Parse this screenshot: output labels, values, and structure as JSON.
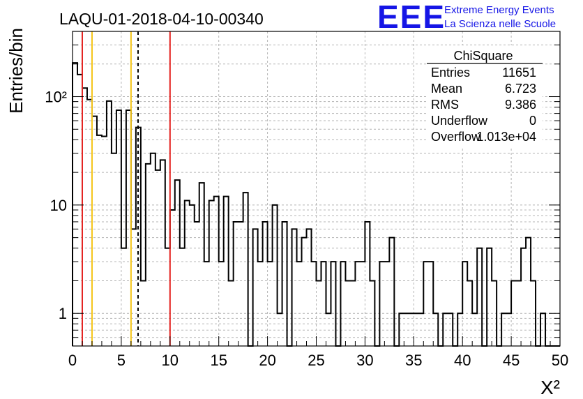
{
  "chart_data": {
    "type": "histogram",
    "title": "LAQU-01-2018-04-10-00340",
    "xlabel": "X²",
    "ylabel": "Entries/bin",
    "xlim": [
      0,
      50
    ],
    "ylim": [
      0.5,
      400
    ],
    "yscale": "log",
    "grid": true,
    "bin_width": 0.5,
    "x_ticks": [
      0,
      5,
      10,
      15,
      20,
      25,
      30,
      35,
      40,
      45,
      50
    ],
    "x_tick_labels": [
      "0",
      "5",
      "10",
      "15",
      "20",
      "25",
      "30",
      "35",
      "40",
      "45",
      "50"
    ],
    "y_ticks": [
      1,
      10,
      100
    ],
    "y_tick_labels": [
      "1",
      "10",
      "10²"
    ],
    "bin_contents": [
      205,
      160,
      120,
      94,
      66,
      44,
      43,
      91,
      30,
      75,
      4,
      75,
      6,
      52,
      2,
      24,
      30,
      21,
      26,
      4,
      9,
      17,
      4,
      11,
      10,
      7,
      16,
      3,
      11,
      12,
      3,
      12,
      2,
      7,
      7,
      13,
      0,
      6,
      3,
      7,
      3,
      10,
      1,
      7,
      0,
      6,
      3,
      5,
      6,
      3,
      2,
      3,
      1,
      3,
      0,
      3,
      2,
      2,
      3,
      3,
      7,
      2,
      0,
      3,
      3,
      5,
      0,
      1,
      1,
      1,
      1,
      1,
      3,
      3,
      1,
      0,
      1,
      1,
      0,
      1,
      3,
      2,
      1,
      4,
      0,
      4,
      2,
      0,
      1,
      1,
      2,
      2,
      4,
      5,
      2,
      0,
      1,
      0,
      0,
      0
    ],
    "vertical_lines": [
      {
        "x": 1.0,
        "color": "#e4221f",
        "style": "solid"
      },
      {
        "x": 2.0,
        "color": "#f5c518",
        "style": "solid"
      },
      {
        "x": 6.0,
        "color": "#f5c518",
        "style": "solid"
      },
      {
        "x": 6.723,
        "color": "#000000",
        "style": "dashed"
      },
      {
        "x": 10.0,
        "color": "#e4221f",
        "style": "solid"
      }
    ],
    "stats_box": {
      "title": "ChiSquare",
      "rows": [
        {
          "label": "Entries",
          "value": "11651"
        },
        {
          "label": "Mean",
          "value": "6.723"
        },
        {
          "label": "RMS",
          "value": "9.386"
        },
        {
          "label": "Underflow",
          "value": "0"
        },
        {
          "label": "Overflow",
          "value": "1.013e+04"
        }
      ]
    }
  },
  "logo": {
    "letters": "EEE",
    "line1": "Extreme Energy Events",
    "line2": "La Scienza nelle Scuole",
    "color": "#1515e6"
  }
}
